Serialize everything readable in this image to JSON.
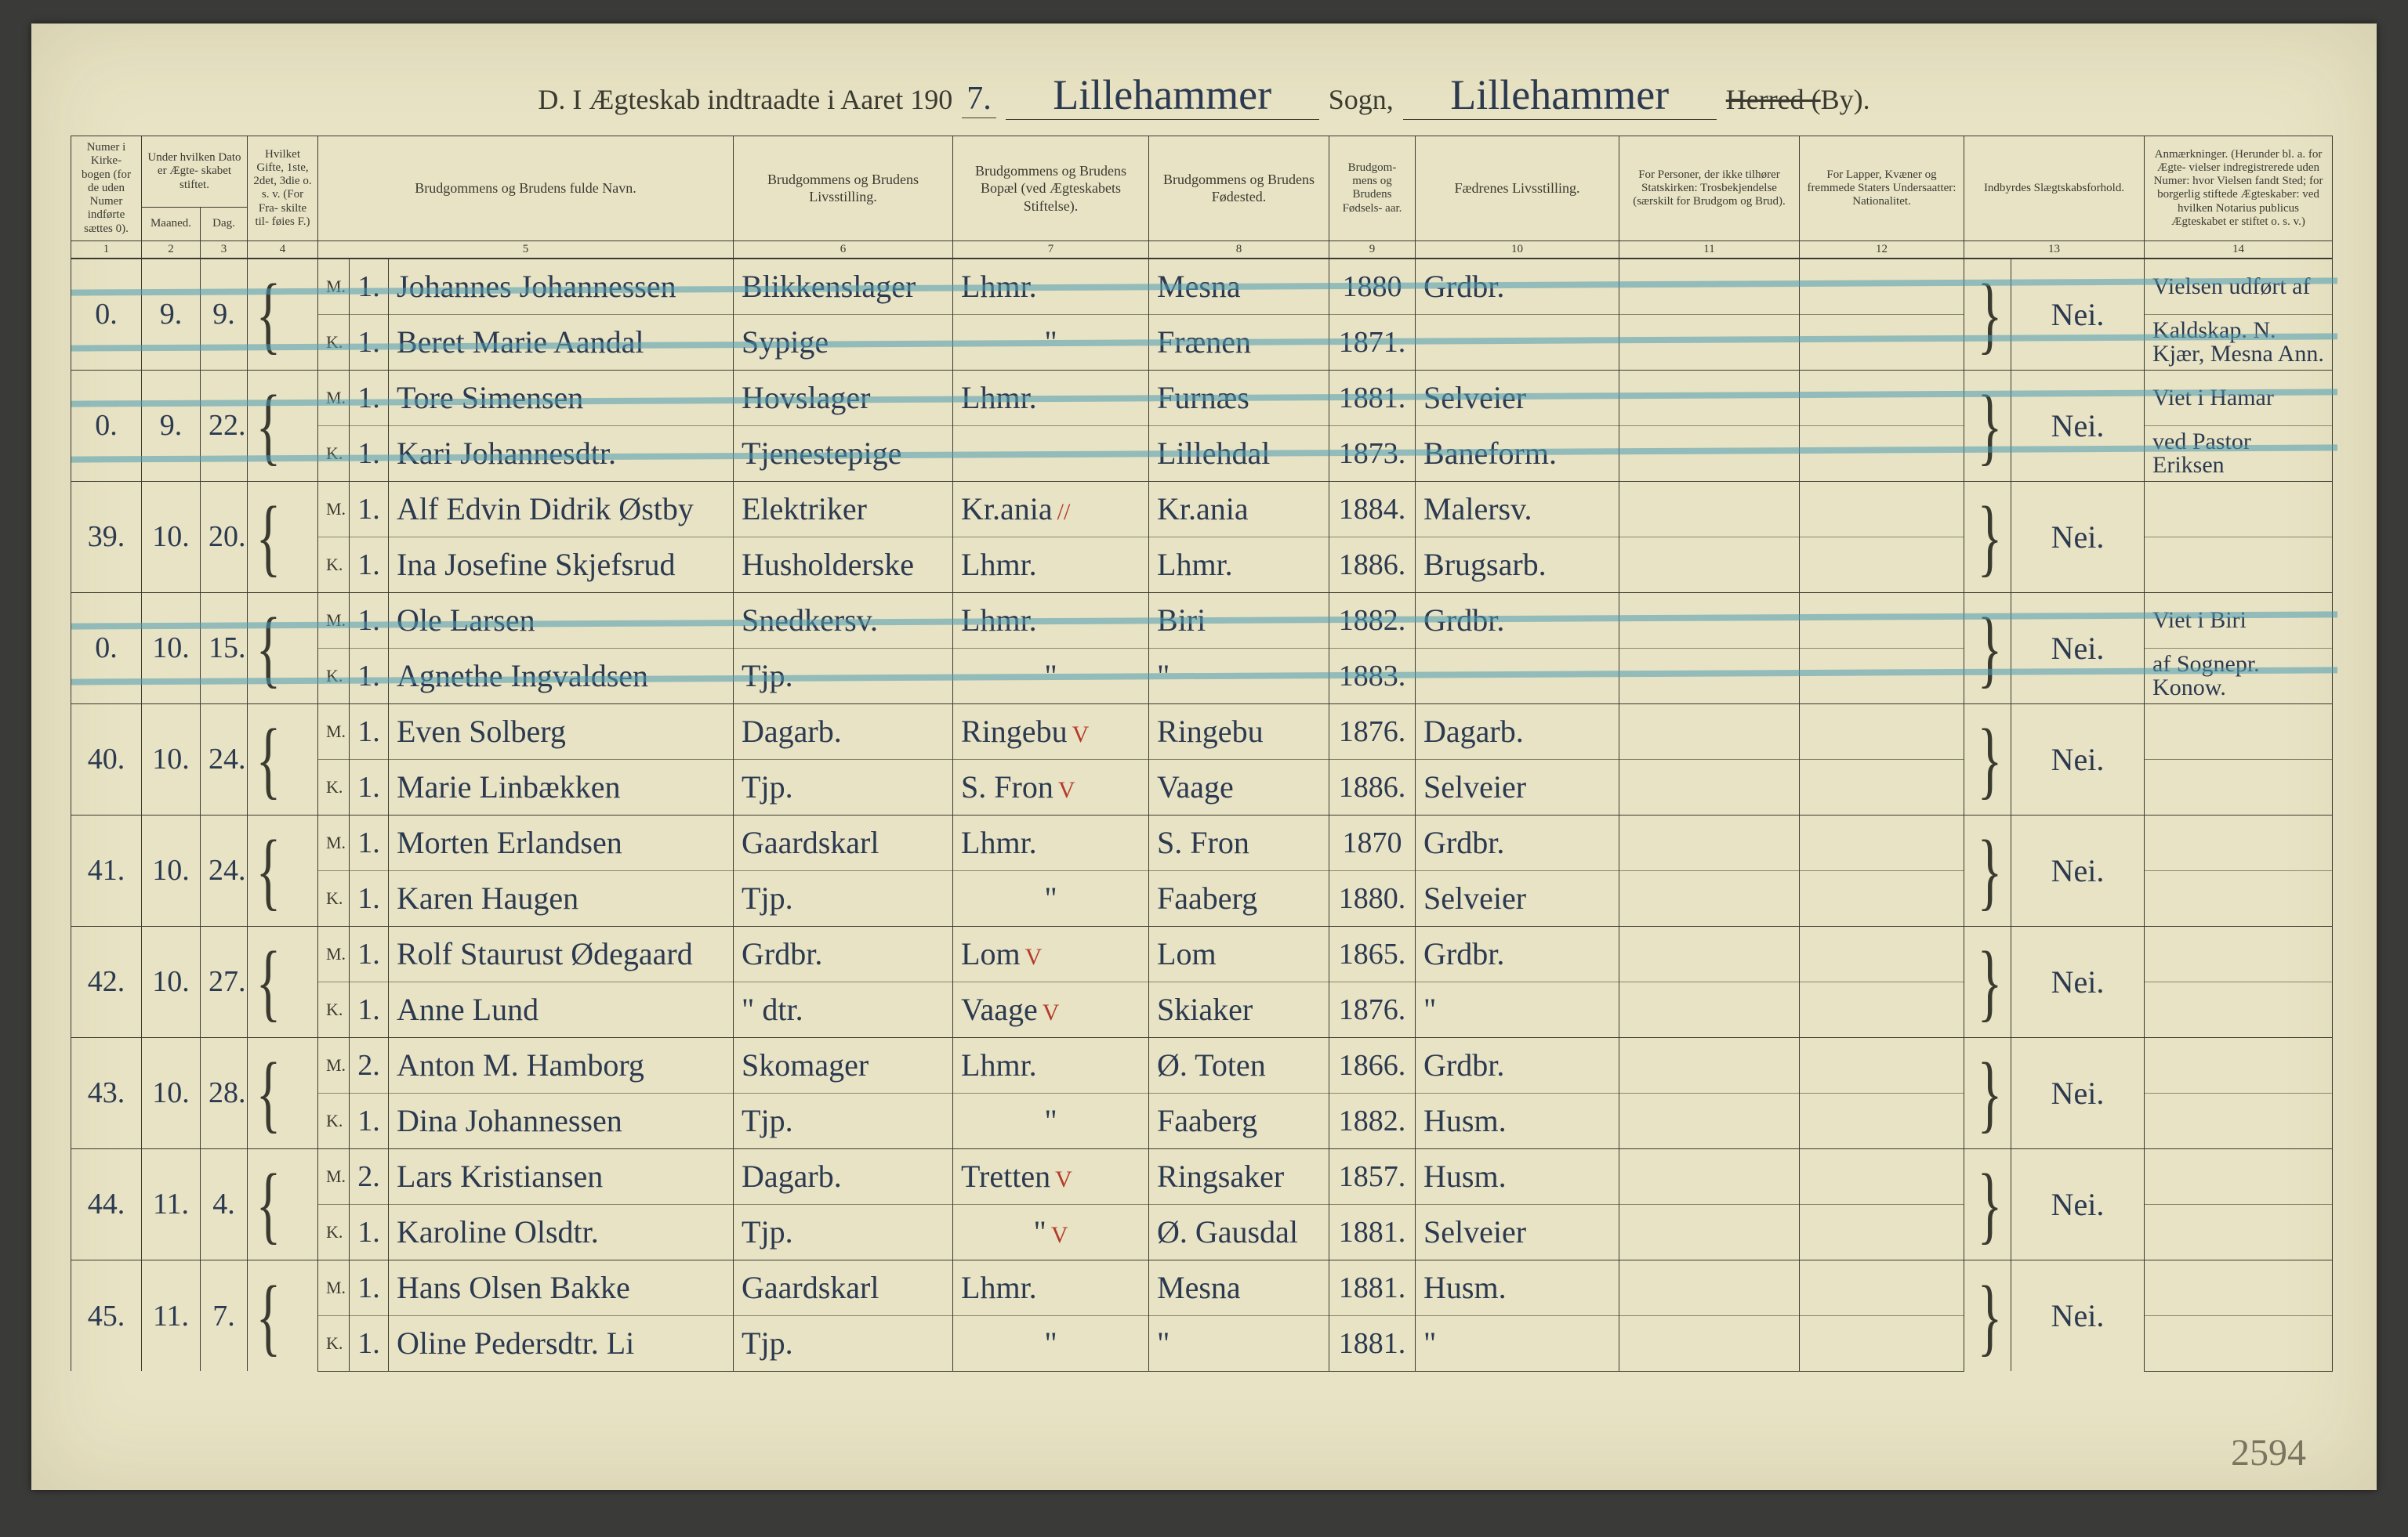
{
  "header": {
    "title_prefix": "D.  I Ægteskab indtraadte i Aaret 190",
    "year_suffix": "7.",
    "sogn_hw": "Lillehammer",
    "sogn_label": "Sogn,",
    "herred_hw": "Lillehammer",
    "herred_label_struck": "Herred (",
    "by_label": "By).",
    "pencil_note": "2594"
  },
  "columns": {
    "c1": "Numer i Kirke- bogen (for de uden Numer indførte sættes 0).",
    "c2": "Under hvilken Dato er Ægte- skabet stiftet.",
    "c2a": "Maaned.",
    "c2b": "Dag.",
    "c3": "Hvilket Gifte, 1ste, 2det, 3die o. s. v. (For Fra- skilte til- føies F.)",
    "c4": "Brudgommens og Brudens fulde Navn.",
    "c5": "Brudgommens og Brudens Livsstilling.",
    "c6": "Brudgommens og Brudens Bopæl (ved Ægteskabets Stiftelse).",
    "c7": "Brudgommens og Brudens Fødested.",
    "c8": "Brudgom- mens og Brudens Fødsels- aar.",
    "c9": "Fædrenes Livsstilling.",
    "c10": "For Personer, der ikke tilhører Statskirken: Trosbekjendelse (særskilt for Brudgom og Brud).",
    "c11": "For Lapper, Kvæner og fremmede Staters Undersaatter: Nationalitet.",
    "c12": "Indbyrdes Slægtskabsforhold.",
    "c13": "Anmærkninger. (Herunder bl. a. for Ægte- vielser indregistrerede uden Numer: hvor Vielsen fandt Sted; for borgerlig stiftede Ægteskaber: ved hvilken Notarius publicus Ægteskabet er stiftet o. s. v.)"
  },
  "colnums": [
    "1",
    "2",
    "3",
    "4",
    "5",
    "6",
    "7",
    "8",
    "9",
    "10",
    "11",
    "12",
    "13",
    "14"
  ],
  "role": {
    "m": "M.",
    "k": "K."
  },
  "rows": [
    {
      "num": "0.",
      "maaned": "9.",
      "dag": "9.",
      "struck": true,
      "slaegt": "Nei.",
      "m": {
        "g": "1.",
        "navn": "Johannes Johannessen",
        "stilling": "Blikkenslager",
        "bopael": "Lhmr.",
        "fsted": "Mesna",
        "faar": "1880",
        "fader": "Grdbr.",
        "anm": "Vielsen udført af"
      },
      "k": {
        "g": "1.",
        "navn": "Beret Marie Aandal",
        "stilling": "Sypige",
        "bopael": "\"",
        "fsted": "Frænen",
        "faar": "1871.",
        "fader": "",
        "anm": "Kaldskap. N. Kjær, Mesna Ann."
      }
    },
    {
      "num": "0.",
      "maaned": "9.",
      "dag": "22.",
      "struck": true,
      "slaegt": "Nei.",
      "m": {
        "g": "1.",
        "navn": "Tore Simensen",
        "stilling": "Hovslager",
        "bopael": "Lhmr.",
        "fsted": "Furnæs",
        "faar": "1881.",
        "fader": "Selveier",
        "anm": "Viet i Hamar"
      },
      "k": {
        "g": "1.",
        "navn": "Kari Johannesdtr.",
        "stilling": "Tjenestepige",
        "bopael": "",
        "fsted": "Lillehdal",
        "faar": "1873.",
        "fader": "Baneform.",
        "anm": "ved Pastor Eriksen"
      }
    },
    {
      "num": "39.",
      "maaned": "10.",
      "dag": "20.",
      "struck": false,
      "slaegt": "Nei.",
      "m": {
        "g": "1.",
        "navn": "Alf Edvin Didrik Østby",
        "stilling": "Elektriker",
        "bopael": "Kr.ania",
        "bopael_mark": "//",
        "fsted": "Kr.ania",
        "faar": "1884.",
        "fader": "Malersv.",
        "anm": ""
      },
      "k": {
        "g": "1.",
        "navn": "Ina Josefine Skjefsrud",
        "stilling": "Husholderske",
        "bopael": "Lhmr.",
        "fsted": "Lhmr.",
        "faar": "1886.",
        "fader": "Brugsarb.",
        "anm": ""
      }
    },
    {
      "num": "0.",
      "maaned": "10.",
      "dag": "15.",
      "struck": true,
      "slaegt": "Nei.",
      "m": {
        "g": "1.",
        "navn": "Ole Larsen",
        "stilling": "Snedkersv.",
        "bopael": "Lhmr.",
        "fsted": "Biri",
        "faar": "1882.",
        "fader": "Grdbr.",
        "anm": "Viet i Biri"
      },
      "k": {
        "g": "1.",
        "navn": "Agnethe Ingvaldsen",
        "stilling": "Tjp.",
        "bopael": "\"",
        "fsted": "\"",
        "faar": "1883.",
        "fader": "",
        "anm": "af Sognepr. Konow."
      }
    },
    {
      "num": "40.",
      "maaned": "10.",
      "dag": "24.",
      "struck": false,
      "slaegt": "Nei.",
      "m": {
        "g": "1.",
        "navn": "Even Solberg",
        "stilling": "Dagarb.",
        "bopael": "Ringebu",
        "bopael_mark": "V",
        "fsted": "Ringebu",
        "faar": "1876.",
        "fader": "Dagarb.",
        "anm": ""
      },
      "k": {
        "g": "1.",
        "navn": "Marie Linbækken",
        "stilling": "Tjp.",
        "bopael": "S. Fron",
        "bopael_mark": "V",
        "fsted": "Vaage",
        "faar": "1886.",
        "fader": "Selveier",
        "anm": ""
      }
    },
    {
      "num": "41.",
      "maaned": "10.",
      "dag": "24.",
      "struck": false,
      "slaegt": "Nei.",
      "m": {
        "g": "1.",
        "navn": "Morten Erlandsen",
        "stilling": "Gaardskarl",
        "bopael": "Lhmr.",
        "fsted": "S. Fron",
        "faar": "1870",
        "fader": "Grdbr.",
        "anm": ""
      },
      "k": {
        "g": "1.",
        "navn": "Karen Haugen",
        "stilling": "Tjp.",
        "bopael": "\"",
        "fsted": "Faaberg",
        "faar": "1880.",
        "fader": "Selveier",
        "anm": ""
      }
    },
    {
      "num": "42.",
      "maaned": "10.",
      "dag": "27.",
      "struck": false,
      "slaegt": "Nei.",
      "m": {
        "g": "1.",
        "navn": "Rolf Staurust Ødegaard",
        "stilling": "Grdbr.",
        "bopael": "Lom",
        "bopael_mark": "V",
        "fsted": "Lom",
        "faar": "1865.",
        "fader": "Grdbr.",
        "anm": ""
      },
      "k": {
        "g": "1.",
        "navn": "Anne Lund",
        "stilling": "\"  dtr.",
        "bopael": "Vaage",
        "bopael_mark": "V",
        "fsted": "Skiaker",
        "faar": "1876.",
        "fader": "\"",
        "anm": ""
      }
    },
    {
      "num": "43.",
      "maaned": "10.",
      "dag": "28.",
      "struck": false,
      "slaegt": "Nei.",
      "m": {
        "g": "2.",
        "navn": "Anton M. Hamborg",
        "stilling": "Skomager",
        "bopael": "Lhmr.",
        "fsted": "Ø. Toten",
        "faar": "1866.",
        "fader": "Grdbr.",
        "anm": ""
      },
      "k": {
        "g": "1.",
        "navn": "Dina Johannessen",
        "stilling": "Tjp.",
        "bopael": "\"",
        "fsted": "Faaberg",
        "faar": "1882.",
        "fader": "Husm.",
        "anm": ""
      }
    },
    {
      "num": "44.",
      "maaned": "11.",
      "dag": "4.",
      "struck": false,
      "slaegt": "Nei.",
      "m": {
        "g": "2.",
        "navn": "Lars Kristiansen",
        "stilling": "Dagarb.",
        "bopael": "Tretten",
        "bopael_mark": "V",
        "fsted": "Ringsaker",
        "faar": "1857.",
        "fader": "Husm.",
        "anm": ""
      },
      "k": {
        "g": "1.",
        "navn": "Karoline Olsdtr.",
        "stilling": "Tjp.",
        "bopael": "\"",
        "bopael_mark": "V",
        "fsted": "Ø. Gausdal",
        "faar": "1881.",
        "fader": "Selveier",
        "anm": ""
      }
    },
    {
      "num": "45.",
      "maaned": "11.",
      "dag": "7.",
      "struck": false,
      "slaegt": "Nei.",
      "m": {
        "g": "1.",
        "navn": "Hans Olsen Bakke",
        "stilling": "Gaardskarl",
        "bopael": "Lhmr.",
        "fsted": "Mesna",
        "faar": "1881.",
        "fader": "Husm.",
        "anm": ""
      },
      "k": {
        "g": "1.",
        "navn": "Oline Pedersdtr. Li",
        "stilling": "Tjp.",
        "bopael": "\"",
        "fsted": "\"",
        "faar": "1881.",
        "fader": "\"",
        "anm": ""
      }
    }
  ]
}
